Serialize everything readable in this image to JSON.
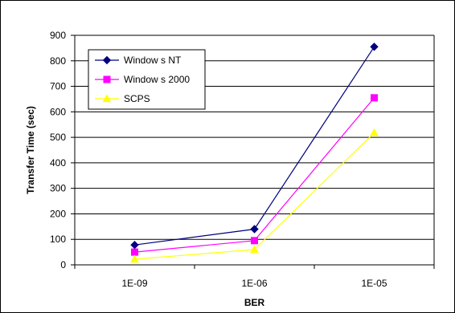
{
  "chart_data": {
    "type": "line",
    "title": "",
    "xlabel": "BER",
    "ylabel": "Transfer Time (sec)",
    "categories": [
      "1E-09",
      "1E-06",
      "1E-05"
    ],
    "ylim": [
      0,
      900
    ],
    "yticks": [
      0,
      100,
      200,
      300,
      400,
      500,
      600,
      700,
      800,
      900
    ],
    "yticks_text": [
      "0",
      "100",
      "200",
      "300",
      "400",
      "500",
      "600",
      "700",
      "800",
      "900"
    ],
    "grid": true,
    "legend_position": "top-left",
    "series": [
      {
        "name": "Window s NT",
        "values": [
          78,
          140,
          855
        ],
        "color": "#000080",
        "marker": "diamond"
      },
      {
        "name": "Window s 2000",
        "values": [
          50,
          95,
          655
        ],
        "color": "#FF00FF",
        "marker": "square"
      },
      {
        "name": "SCPS",
        "values": [
          22,
          60,
          518
        ],
        "color": "#FFFF00",
        "marker": "triangle"
      }
    ]
  }
}
